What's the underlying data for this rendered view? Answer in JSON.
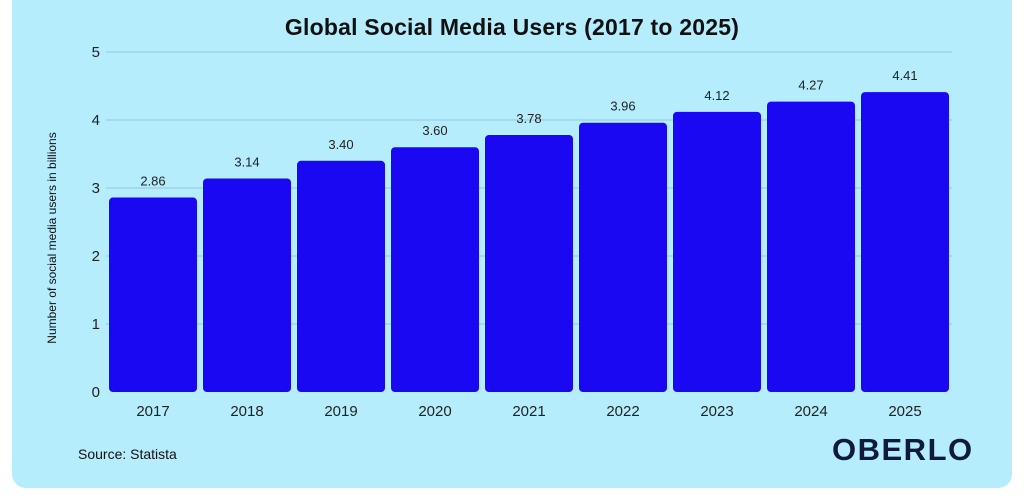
{
  "chart_data": {
    "type": "bar",
    "title": "Global Social Media Users (2017 to 2025)",
    "xlabel": "",
    "ylabel": "Number of social media users in billions",
    "categories": [
      "2017",
      "2018",
      "2019",
      "2020",
      "2021",
      "2022",
      "2023",
      "2024",
      "2025"
    ],
    "values": [
      2.86,
      3.14,
      3.4,
      3.6,
      3.78,
      3.96,
      4.12,
      4.27,
      4.41
    ],
    "data_labels": [
      "2.86",
      "3.14",
      "3.40",
      "3.60",
      "3.78",
      "3.96",
      "4.12",
      "4.27",
      "4.41"
    ],
    "yticks": [
      0,
      1,
      2,
      3,
      4,
      5
    ],
    "ylim": [
      0,
      5
    ],
    "grid": true,
    "bar_color": "#1a08f2",
    "grid_color": "#93c8d6",
    "background": "#b5edfd"
  },
  "footer": {
    "source": "Source: Statista",
    "logo": "OBERLO"
  }
}
